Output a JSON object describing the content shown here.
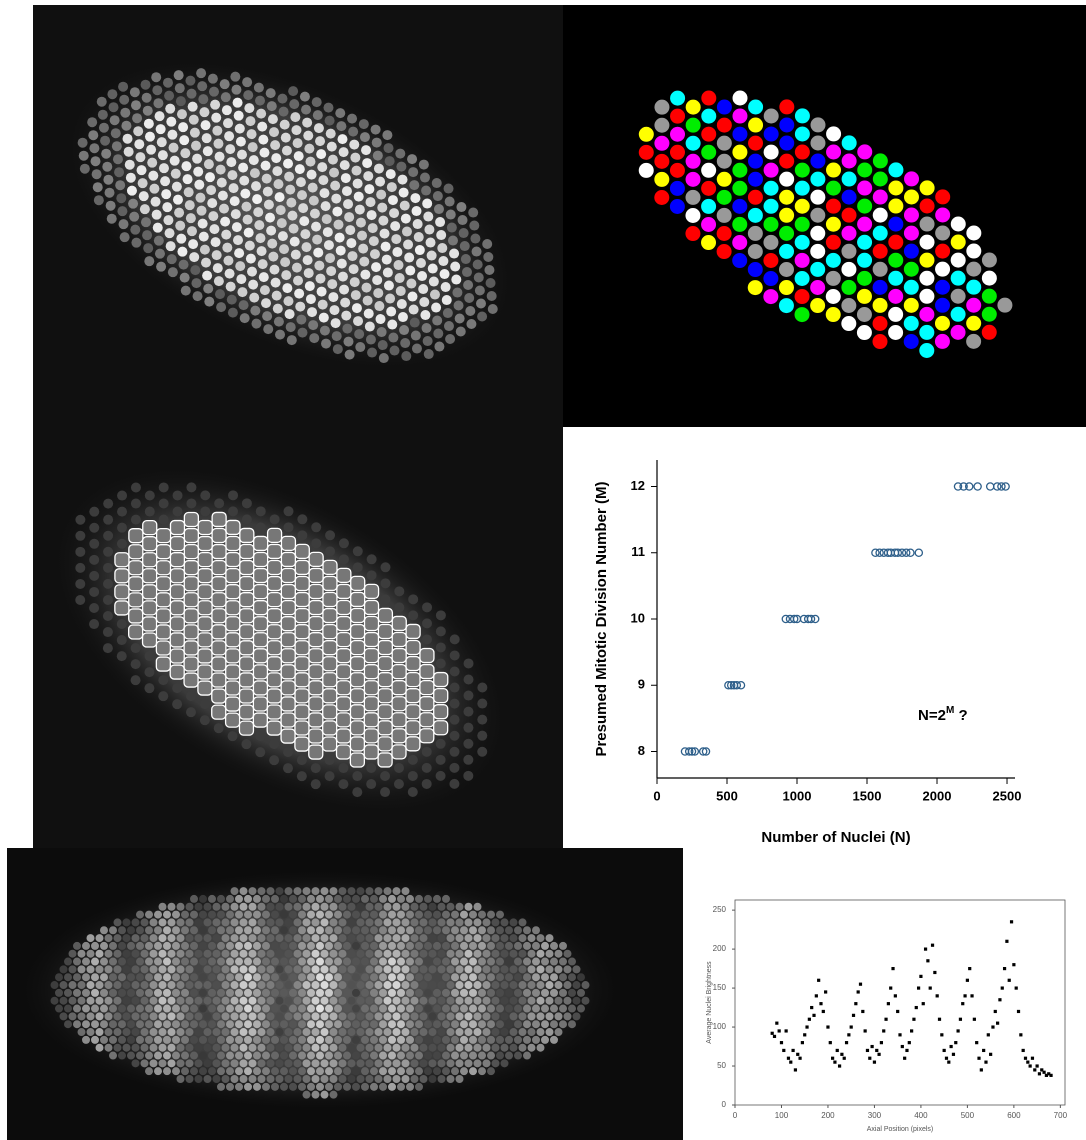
{
  "chart_data": [
    {
      "type": "scatter",
      "x_label": "Number of Nuclei (N)",
      "y_label": "Presumed Mitotic Division Number (M)",
      "annotation": {
        "text": "N=2",
        "superscript": "M",
        "suffix": " ?"
      },
      "color": "#2e5f8a",
      "marker": "hollow-circle",
      "x": [
        200,
        230,
        250,
        270,
        330,
        350,
        510,
        530,
        550,
        570,
        600,
        920,
        950,
        980,
        1000,
        1050,
        1080,
        1100,
        1130,
        1560,
        1590,
        1620,
        1650,
        1670,
        1700,
        1720,
        1750,
        1780,
        1810,
        1870,
        2150,
        2190,
        2230,
        2290,
        2380,
        2430,
        2460,
        2490
      ],
      "values": [
        8,
        8,
        8,
        8,
        8,
        8,
        9,
        9,
        9,
        9,
        9,
        10,
        10,
        10,
        10,
        10,
        10,
        10,
        10,
        11,
        11,
        11,
        11,
        11,
        11,
        11,
        11,
        11,
        11,
        11,
        12,
        12,
        12,
        12,
        12,
        12,
        12,
        12
      ],
      "xlim": [
        0,
        2557
      ],
      "ylim": [
        7.6,
        12.4
      ],
      "xticks": [
        0,
        500,
        1000,
        1500,
        2000,
        2500
      ],
      "yticks": [
        8,
        9,
        10,
        11,
        12
      ]
    },
    {
      "type": "scatter",
      "x_label": "Axial Position (pixels)",
      "y_label": "Average Nuclei Brightness",
      "color": "#000000",
      "marker": "filled-square",
      "x": [
        80,
        85,
        90,
        95,
        100,
        105,
        110,
        115,
        120,
        125,
        130,
        135,
        140,
        145,
        150,
        155,
        160,
        165,
        170,
        175,
        180,
        185,
        190,
        195,
        200,
        205,
        210,
        215,
        220,
        225,
        230,
        235,
        240,
        245,
        250,
        255,
        260,
        265,
        270,
        275,
        280,
        285,
        290,
        295,
        300,
        305,
        310,
        315,
        320,
        325,
        330,
        335,
        340,
        345,
        350,
        355,
        360,
        365,
        370,
        375,
        380,
        385,
        390,
        395,
        400,
        405,
        410,
        415,
        420,
        425,
        430,
        435,
        440,
        445,
        450,
        455,
        460,
        465,
        470,
        475,
        480,
        485,
        490,
        495,
        500,
        505,
        510,
        515,
        520,
        525,
        530,
        535,
        540,
        545,
        550,
        555,
        560,
        565,
        570,
        575,
        580,
        585,
        590,
        595,
        600,
        605,
        610,
        615,
        620,
        625,
        630,
        635,
        640,
        645,
        650,
        655,
        660,
        665,
        670,
        675,
        680
      ],
      "values": [
        92,
        88,
        105,
        95,
        80,
        70,
        95,
        60,
        55,
        70,
        45,
        65,
        60,
        80,
        90,
        100,
        110,
        125,
        115,
        140,
        160,
        130,
        120,
        145,
        100,
        80,
        60,
        55,
        70,
        50,
        65,
        60,
        80,
        90,
        100,
        115,
        130,
        145,
        155,
        120,
        95,
        70,
        60,
        75,
        55,
        70,
        65,
        80,
        95,
        110,
        130,
        150,
        175,
        140,
        120,
        90,
        75,
        60,
        70,
        80,
        95,
        110,
        125,
        150,
        165,
        130,
        200,
        185,
        150,
        205,
        170,
        140,
        110,
        90,
        70,
        60,
        55,
        75,
        65,
        80,
        95,
        110,
        130,
        140,
        160,
        175,
        140,
        110,
        80,
        60,
        45,
        70,
        55,
        90,
        65,
        100,
        120,
        105,
        135,
        150,
        175,
        210,
        160,
        235,
        180,
        150,
        120,
        90,
        70,
        60,
        55,
        50,
        60,
        45,
        50,
        40,
        45,
        42,
        38,
        40,
        38
      ],
      "xlim": [
        0,
        710
      ],
      "ylim": [
        0,
        263
      ],
      "xticks": [
        0,
        100,
        200,
        300,
        400,
        500,
        600,
        700
      ],
      "yticks": [
        0,
        50,
        100,
        150,
        200,
        250
      ]
    }
  ]
}
